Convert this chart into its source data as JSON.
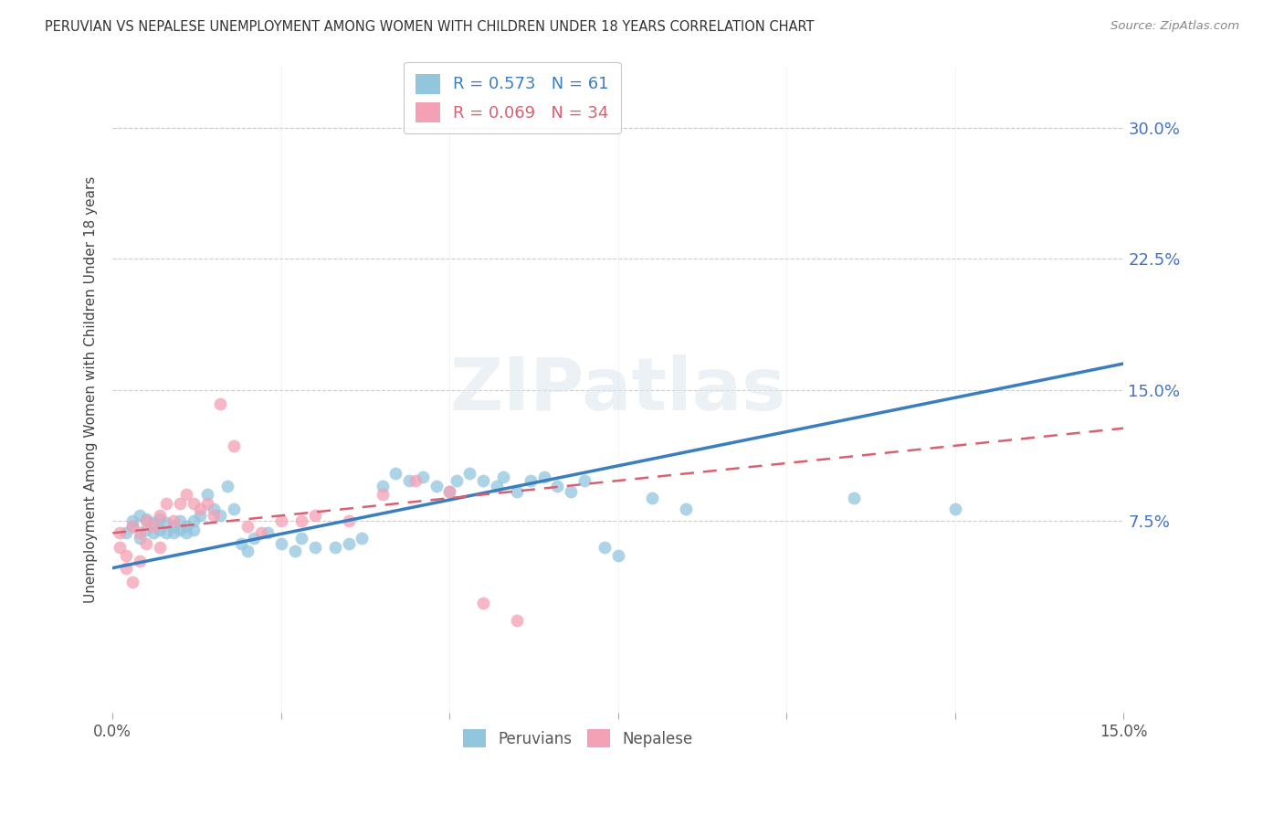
{
  "title": "PERUVIAN VS NEPALESE UNEMPLOYMENT AMONG WOMEN WITH CHILDREN UNDER 18 YEARS CORRELATION CHART",
  "source": "Source: ZipAtlas.com",
  "ylabel": "Unemployment Among Women with Children Under 18 years",
  "ytick_labels": [
    "30.0%",
    "22.5%",
    "15.0%",
    "7.5%"
  ],
  "ytick_values": [
    0.3,
    0.225,
    0.15,
    0.075
  ],
  "xlim": [
    0.0,
    0.15
  ],
  "ylim": [
    -0.035,
    0.335
  ],
  "peruvian_color": "#92c5de",
  "nepalese_color": "#f4a0b5",
  "peruvian_line_color": "#3a7ebf",
  "nepalese_line_color": "#d96070",
  "R_peruvian": 0.573,
  "N_peruvian": 61,
  "R_nepalese": 0.069,
  "N_nepalese": 34,
  "peruvian_x": [
    0.002,
    0.003,
    0.003,
    0.004,
    0.004,
    0.005,
    0.005,
    0.006,
    0.006,
    0.007,
    0.007,
    0.008,
    0.008,
    0.009,
    0.009,
    0.01,
    0.01,
    0.011,
    0.011,
    0.012,
    0.012,
    0.013,
    0.014,
    0.015,
    0.016,
    0.017,
    0.018,
    0.019,
    0.02,
    0.021,
    0.023,
    0.025,
    0.027,
    0.028,
    0.03,
    0.033,
    0.035,
    0.037,
    0.04,
    0.042,
    0.044,
    0.046,
    0.048,
    0.05,
    0.051,
    0.053,
    0.055,
    0.057,
    0.058,
    0.06,
    0.062,
    0.064,
    0.066,
    0.068,
    0.07,
    0.073,
    0.075,
    0.08,
    0.085,
    0.11,
    0.125
  ],
  "peruvian_y": [
    0.068,
    0.072,
    0.075,
    0.065,
    0.078,
    0.07,
    0.076,
    0.068,
    0.074,
    0.07,
    0.076,
    0.068,
    0.074,
    0.072,
    0.068,
    0.075,
    0.07,
    0.072,
    0.068,
    0.075,
    0.07,
    0.078,
    0.09,
    0.082,
    0.078,
    0.095,
    0.082,
    0.062,
    0.058,
    0.065,
    0.068,
    0.062,
    0.058,
    0.065,
    0.06,
    0.06,
    0.062,
    0.065,
    0.095,
    0.102,
    0.098,
    0.1,
    0.095,
    0.092,
    0.098,
    0.102,
    0.098,
    0.095,
    0.1,
    0.092,
    0.098,
    0.1,
    0.095,
    0.092,
    0.098,
    0.06,
    0.055,
    0.088,
    0.082,
    0.088,
    0.082
  ],
  "nepalese_x": [
    0.001,
    0.001,
    0.002,
    0.002,
    0.003,
    0.003,
    0.004,
    0.004,
    0.005,
    0.005,
    0.006,
    0.007,
    0.007,
    0.008,
    0.009,
    0.01,
    0.011,
    0.012,
    0.013,
    0.014,
    0.015,
    0.016,
    0.018,
    0.02,
    0.022,
    0.025,
    0.028,
    0.03,
    0.035,
    0.04,
    0.045,
    0.05,
    0.055,
    0.06
  ],
  "nepalese_y": [
    0.068,
    0.06,
    0.055,
    0.048,
    0.072,
    0.04,
    0.068,
    0.052,
    0.075,
    0.062,
    0.072,
    0.078,
    0.06,
    0.085,
    0.075,
    0.085,
    0.09,
    0.085,
    0.082,
    0.085,
    0.078,
    0.142,
    0.118,
    0.072,
    0.068,
    0.075,
    0.075,
    0.078,
    0.075,
    0.09,
    0.098,
    0.092,
    0.028,
    0.018
  ],
  "peru_line_x": [
    0.0,
    0.15
  ],
  "peru_line_y": [
    0.048,
    0.165
  ],
  "nep_line_x": [
    0.0,
    0.15
  ],
  "nep_line_y": [
    0.068,
    0.128
  ],
  "watermark": "ZIPatlas",
  "background_color": "#ffffff",
  "grid_color": "#cccccc"
}
